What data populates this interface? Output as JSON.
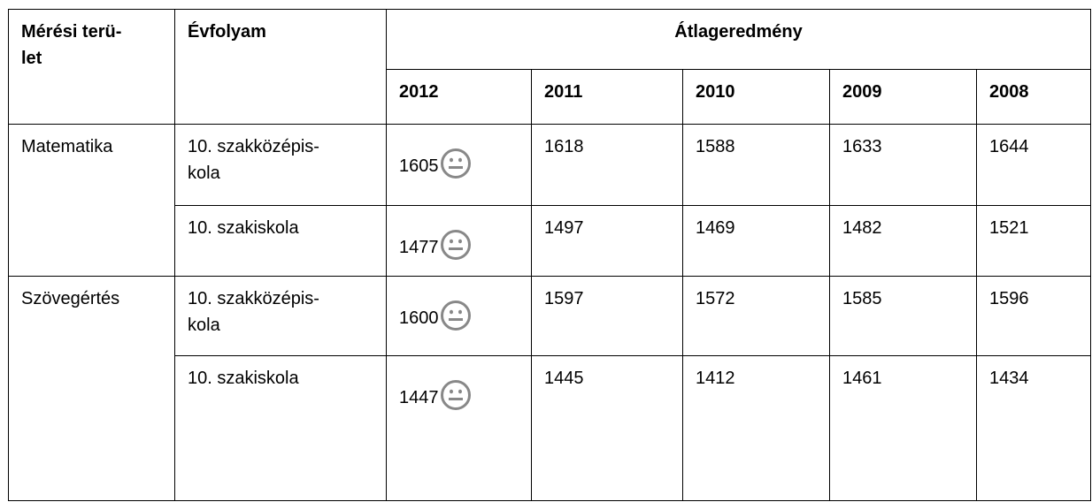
{
  "header": {
    "area": [
      "Mérési terü-",
      "let"
    ],
    "grade": "Évfolyam",
    "average": "Átlageredmény",
    "years": [
      "2012",
      "2011",
      "2010",
      "2009",
      "2008"
    ]
  },
  "rows": [
    {
      "area": "Matematika",
      "groups": [
        {
          "grade": [
            "10. szakközépis-",
            "kola"
          ],
          "values": [
            "1605",
            "1618",
            "1588",
            "1633",
            "1644"
          ]
        },
        {
          "grade": [
            "10. szakiskola"
          ],
          "values": [
            "1477",
            "1497",
            "1469",
            "1482",
            "1521"
          ]
        }
      ]
    },
    {
      "area": "Szövegértés",
      "groups": [
        {
          "grade": [
            "10. szakközépis-",
            "kola"
          ],
          "values": [
            "1600",
            "1597",
            "1572",
            "1585",
            "1596"
          ]
        },
        {
          "grade": [
            "10. szakiskola"
          ],
          "values": [
            "1447",
            "1445",
            "1412",
            "1461",
            "1434"
          ]
        }
      ]
    }
  ]
}
